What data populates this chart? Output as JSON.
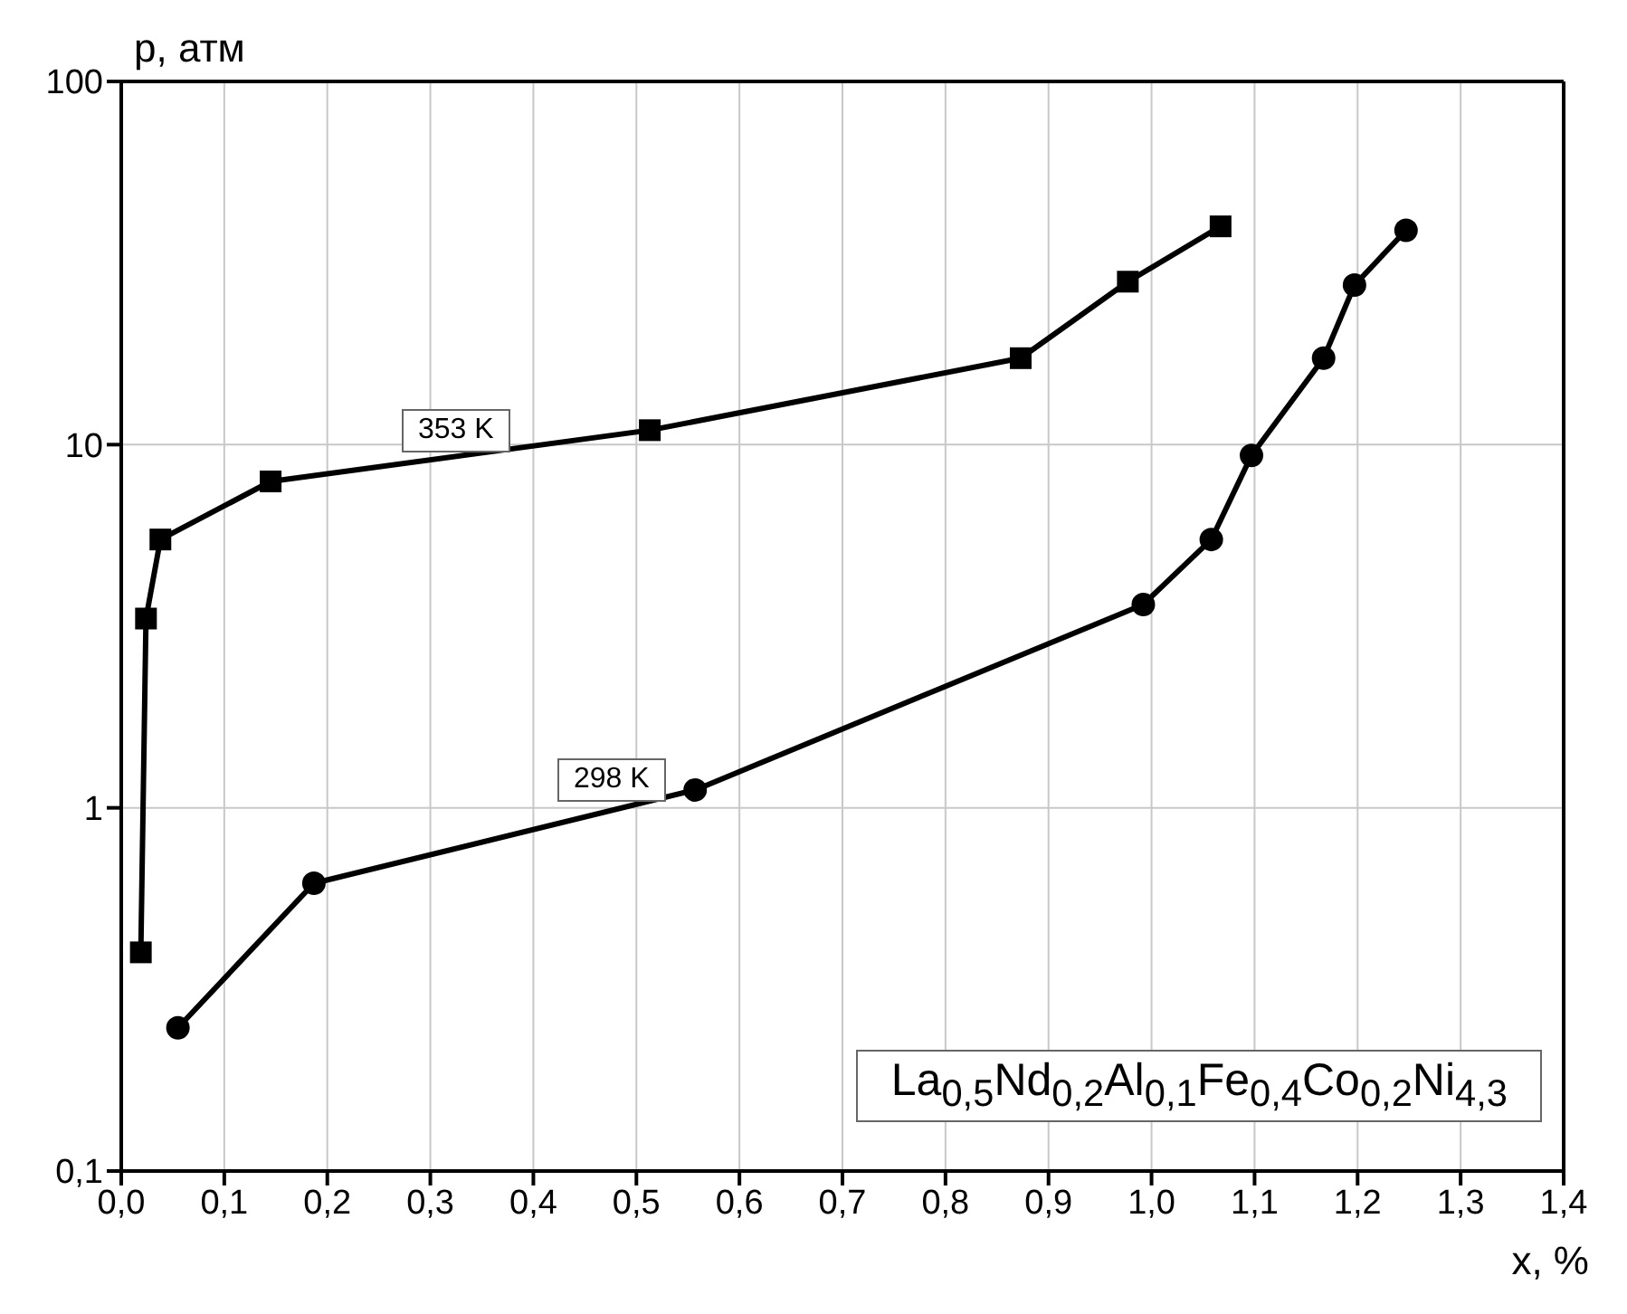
{
  "chart_data": {
    "type": "line",
    "xlabel": "x, %",
    "ylabel": "p, атм",
    "annotations": [
      "La$_{0,5}$Nd$_{0,2}$Al$_{0,1}$Fe$_{0,4}$Co$_{0,2}$Ni$_{4,3}$"
    ],
    "series": [
      {
        "name": "353 K",
        "color": "#000000",
        "marker": "square",
        "x": [
          0.019,
          0.024,
          0.038,
          0.145,
          0.513,
          0.873,
          0.977,
          1.067
        ],
        "values": [
          0.4,
          3.32,
          5.48,
          7.92,
          10.96,
          17.3,
          28.1,
          39.9
        ]
      },
      {
        "name": "298 K",
        "color": "#000000",
        "marker": "circle",
        "x": [
          0.055,
          0.187,
          0.557,
          0.992,
          1.058,
          1.097,
          1.167,
          1.197,
          1.247
        ],
        "values": [
          0.248,
          0.62,
          1.12,
          3.63,
          5.48,
          9.34,
          17.3,
          27.5,
          38.9
        ]
      }
    ],
    "log": "y",
    "grid": true,
    "legend": false,
    "line_style": "solid",
    "xlim": [
      0,
      1.4
    ],
    "xticks": [
      {
        "value": 0,
        "label": "0,0"
      },
      {
        "value": 0.1,
        "label": "0,1"
      },
      {
        "value": 0.2,
        "label": "0,2"
      },
      {
        "value": 0.3,
        "label": "0,3"
      },
      {
        "value": 0.4,
        "label": "0,4"
      },
      {
        "value": 0.5,
        "label": "0,5"
      },
      {
        "value": 0.6,
        "label": "0,6"
      },
      {
        "value": 0.7,
        "label": "0,7"
      },
      {
        "value": 0.8,
        "label": "0,8"
      },
      {
        "value": 0.9,
        "label": "0,9"
      },
      {
        "value": 1.0,
        "label": "1,0"
      },
      {
        "value": 1.1,
        "label": "1,1"
      },
      {
        "value": 1.2,
        "label": "1,2"
      },
      {
        "value": 1.3,
        "label": "1,3"
      },
      {
        "value": 1.4,
        "label": "1,4"
      }
    ],
    "ylim": [
      0.1,
      100
    ],
    "yticks": [
      {
        "value": 0.1,
        "label": "0,1"
      },
      1,
      10,
      100
    ]
  }
}
